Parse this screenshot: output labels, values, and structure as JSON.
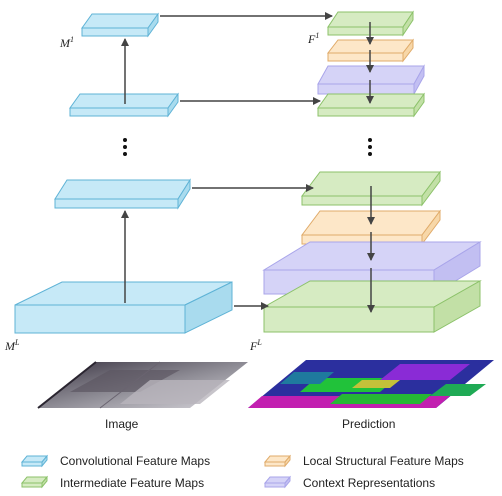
{
  "labels": {
    "m_top": "M",
    "m_top_sup": "1",
    "m_bottom": "M",
    "m_bottom_sup": "L",
    "f_top": "F",
    "f_top_sup": "1",
    "f_bottom": "F",
    "f_bottom_sup": "L"
  },
  "captions": {
    "image": "Image",
    "prediction": "Prediction"
  },
  "legend": [
    {
      "label": "Convolutional Feature Maps",
      "color": "#c6e9f7"
    },
    {
      "label": "Local Structural Feature Maps",
      "color": "#fde7c8"
    },
    {
      "label": "Intermediate Feature Maps",
      "color": "#d6ebc2"
    },
    {
      "label": "Context Representations",
      "color": "#d5d3f7"
    }
  ],
  "colors": {
    "conv": "#c6e9f7",
    "conv_stroke": "#5fb3d6",
    "inter": "#d6ebc2",
    "inter_stroke": "#8cc26a",
    "local": "#fde7c8",
    "local_stroke": "#e0ab6a",
    "context": "#d5d3f7",
    "context_stroke": "#a9a5ea",
    "arrow": "#444444"
  }
}
